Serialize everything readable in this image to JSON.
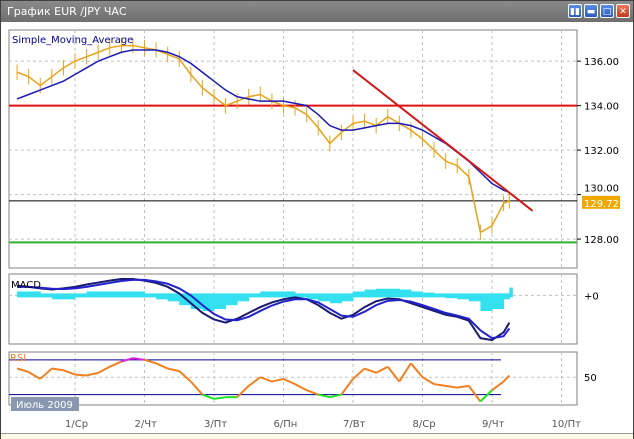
{
  "window": {
    "title": "График EUR /JPY  ЧАС",
    "buttons": [
      "tile-icon",
      "minimize-icon",
      "maximize-icon",
      "close-icon"
    ]
  },
  "colors": {
    "price": "#e8a31a",
    "sma": "#1a1ab4",
    "resistance": "#e01010",
    "trendline": "#d01818",
    "support": "#30b030",
    "bid_line": "#000000",
    "bid_label_bg": "#f0a800",
    "macd_hist": "#33e0f0",
    "macd_main": "#1a1a70",
    "macd_signal": "#2222cc",
    "rsi": "#f08020",
    "rsi_oversold": "#22e022",
    "rsi_overbought": "#e020e0",
    "rsi_levels": "#000090"
  },
  "chart_data": [
    {
      "type": "line",
      "title": "Simple_Moving_Average",
      "yticks": [
        "136.00",
        "134.00",
        "132.00",
        "130.00",
        "128.00"
      ],
      "ylim": [
        126.7,
        137.4
      ],
      "xticks": [
        "1/Ср",
        "2/Чт",
        "3/Пт",
        "6/Пн",
        "7/Вт",
        "8/Ср",
        "9/Чт",
        "10/Пт"
      ],
      "period_label": "Июль 2009",
      "current_price": "129.72",
      "grid": true,
      "x": [
        "30.06 04:00",
        "30.06 08:00",
        "30.06 12:00",
        "30.06 16:00",
        "30.06 20:00",
        "01.07 00:00",
        "01.07 04:00",
        "01.07 08:00",
        "01.07 12:00",
        "01.07 16:00",
        "01.07 20:00",
        "02.07 00:00",
        "02.07 04:00",
        "02.07 08:00",
        "02.07 12:00",
        "02.07 16:00",
        "02.07 20:00",
        "03.07 00:00",
        "03.07 04:00",
        "03.07 08:00",
        "03.07 12:00",
        "03.07 16:00",
        "03.07 20:00",
        "06.07 00:00",
        "06.07 04:00",
        "06.07 08:00",
        "06.07 12:00",
        "06.07 16:00",
        "06.07 20:00",
        "07.07 00:00",
        "07.07 04:00",
        "07.07 08:00",
        "07.07 12:00",
        "07.07 16:00",
        "07.07 20:00",
        "08.07 00:00",
        "08.07 04:00",
        "08.07 08:00",
        "08.07 12:00",
        "08.07 16:00",
        "08.07 20:00",
        "09.07 00:00",
        "09.07 04:00",
        "09.07 06:00"
      ],
      "series": [
        {
          "values": [
            135.5,
            135.3,
            134.9,
            135.3,
            135.7,
            136.0,
            136.2,
            136.4,
            136.6,
            136.7,
            136.7,
            136.6,
            136.5,
            136.3,
            136.1,
            135.4,
            134.8,
            134.4,
            134.0,
            134.2,
            134.4,
            134.5,
            134.2,
            134.0,
            133.9,
            133.6,
            133.0,
            132.3,
            132.8,
            133.2,
            133.3,
            133.1,
            133.5,
            133.2,
            132.9,
            132.5,
            132.0,
            131.5,
            131.3,
            130.8,
            128.3,
            128.6,
            129.6,
            129.72
          ]
        },
        {
          "name": "Simple_Moving_Average",
          "values": [
            134.3,
            134.5,
            134.7,
            134.9,
            135.1,
            135.4,
            135.7,
            136.0,
            136.2,
            136.4,
            136.5,
            136.5,
            136.5,
            136.4,
            136.2,
            135.9,
            135.5,
            135.1,
            134.7,
            134.4,
            134.3,
            134.2,
            134.2,
            134.2,
            134.1,
            134.0,
            133.6,
            133.1,
            132.9,
            132.9,
            133.0,
            133.1,
            133.2,
            133.2,
            133.1,
            132.9,
            132.6,
            132.3,
            131.9,
            131.5,
            131.0,
            130.5,
            130.2,
            130.1
          ]
        }
      ],
      "hlines": {
        "resistance": 134.0,
        "bid": 129.72,
        "support": 127.85
      },
      "trendline": {
        "from": {
          "x": "07.07 00:00",
          "y": 135.6
        },
        "to": {
          "x": "09.07 14:00",
          "y": 129.27
        }
      }
    },
    {
      "type": "line",
      "title": "MACD",
      "yticks": [
        "+0"
      ],
      "ylim": [
        -1.25,
        0.55
      ],
      "series": [
        {
          "values": [
            0.05,
            0.05,
            0.0,
            -0.05,
            -0.05,
            0.0,
            0.05,
            0.05,
            0.05,
            0.05,
            0.05,
            0.0,
            -0.05,
            -0.1,
            -0.2,
            -0.3,
            -0.35,
            -0.3,
            -0.2,
            -0.1,
            0.0,
            0.05,
            0.05,
            0.05,
            0.0,
            -0.05,
            -0.1,
            -0.15,
            -0.1,
            0.05,
            0.1,
            0.12,
            0.12,
            0.1,
            0.05,
            0.02,
            0.0,
            -0.02,
            -0.05,
            -0.1,
            -0.35,
            -0.3,
            -0.05,
            0.15
          ]
        },
        {
          "values": [
            0.25,
            0.22,
            0.18,
            0.15,
            0.18,
            0.22,
            0.28,
            0.33,
            0.38,
            0.42,
            0.42,
            0.38,
            0.32,
            0.22,
            0.05,
            -0.2,
            -0.45,
            -0.62,
            -0.7,
            -0.6,
            -0.45,
            -0.3,
            -0.18,
            -0.1,
            -0.05,
            -0.1,
            -0.25,
            -0.45,
            -0.6,
            -0.5,
            -0.3,
            -0.15,
            -0.08,
            -0.1,
            -0.2,
            -0.3,
            -0.4,
            -0.5,
            -0.55,
            -0.65,
            -1.1,
            -1.15,
            -0.95,
            -0.7
          ]
        },
        {
          "values": [
            0.22,
            0.22,
            0.2,
            0.17,
            0.16,
            0.18,
            0.22,
            0.27,
            0.32,
            0.37,
            0.4,
            0.4,
            0.36,
            0.3,
            0.18,
            0.0,
            -0.25,
            -0.48,
            -0.62,
            -0.64,
            -0.55,
            -0.4,
            -0.26,
            -0.16,
            -0.1,
            -0.1,
            -0.18,
            -0.35,
            -0.52,
            -0.55,
            -0.42,
            -0.25,
            -0.14,
            -0.12,
            -0.16,
            -0.25,
            -0.35,
            -0.45,
            -0.52,
            -0.6,
            -0.9,
            -1.1,
            -1.05,
            -0.85
          ]
        }
      ]
    },
    {
      "type": "line",
      "title": "RSI",
      "yticks": [
        "50"
      ],
      "levels": [
        70,
        30
      ],
      "ylim": [
        18,
        79
      ],
      "series": [
        {
          "values": [
            60,
            56,
            48,
            60,
            58,
            53,
            52,
            55,
            62,
            68,
            72,
            70,
            66,
            60,
            57,
            45,
            30,
            25,
            27,
            27,
            40,
            50,
            45,
            48,
            42,
            35,
            30,
            27,
            30,
            48,
            60,
            55,
            62,
            45,
            66,
            50,
            42,
            40,
            38,
            40,
            22,
            35,
            45,
            52
          ]
        }
      ]
    }
  ]
}
